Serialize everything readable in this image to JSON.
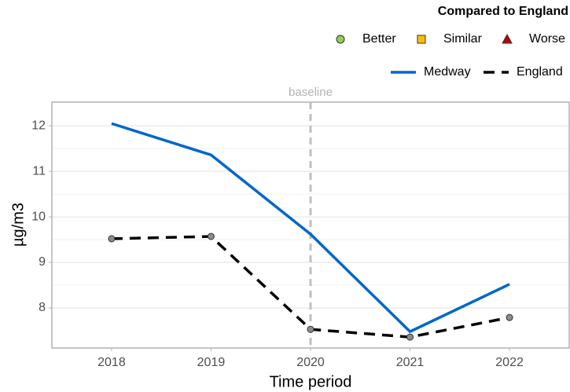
{
  "chart_data": {
    "type": "line",
    "legend_title": "Compared to England",
    "comparison_legend": [
      {
        "label": "Better",
        "color": "#92d050",
        "shape": "circle"
      },
      {
        "label": "Similar",
        "color": "#ffc000",
        "shape": "square"
      },
      {
        "label": "Worse",
        "color": "#c00000",
        "shape": "triangle"
      }
    ],
    "x": [
      2018,
      2019,
      2020,
      2021,
      2022
    ],
    "series": [
      {
        "name": "Medway",
        "color": "#0066cc",
        "dash": false,
        "values": [
          12.05,
          11.36,
          9.62,
          7.48,
          8.52
        ]
      },
      {
        "name": "England",
        "color": "#000000",
        "dash": true,
        "marker_color": "#8c8c8c",
        "values": [
          9.52,
          9.57,
          7.53,
          7.36,
          7.79
        ]
      }
    ],
    "annotation": {
      "label": "baseline",
      "x": 2020
    },
    "xlabel": "Time period",
    "ylabel": "µg/m3",
    "xlim": [
      2017.4,
      2022.6
    ],
    "xticks": [
      2018,
      2019,
      2020,
      2021,
      2022
    ],
    "ylim": [
      7.12,
      12.52
    ],
    "yticks": [
      8,
      9,
      10,
      11,
      12
    ],
    "grid": true,
    "minor_grid": true
  }
}
